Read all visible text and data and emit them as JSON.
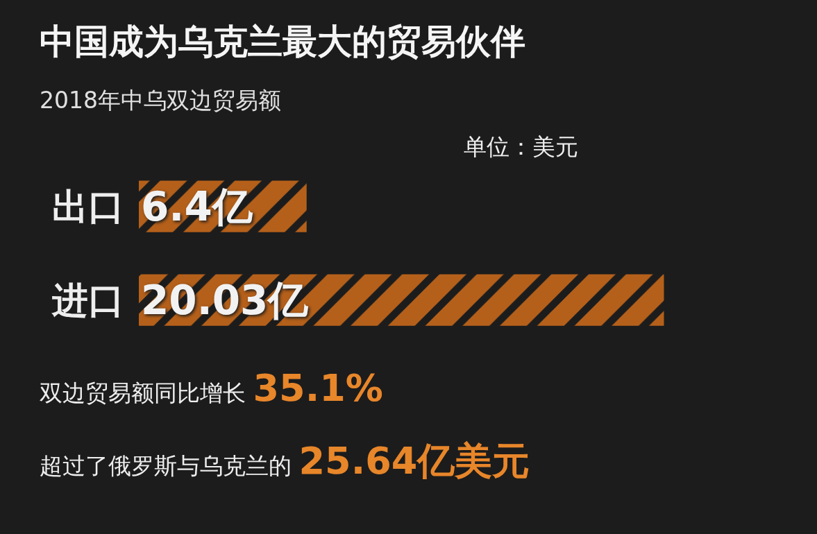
{
  "chart_data": {
    "type": "bar",
    "orientation": "horizontal",
    "title": "中国成为乌克兰最大的贸易伙伴",
    "subtitle": "2018年中乌双边贸易额",
    "categories": [
      "出口",
      "进口"
    ],
    "values": [
      6.4,
      20.03
    ],
    "value_labels": [
      "6.4亿",
      "20.03亿"
    ],
    "color": "#b5601a",
    "tick_labels": "y",
    "annotations": [
      "单位：美元",
      "双边贸易额同比增长 35.1%",
      "超过了俄罗斯与乌克兰的 25.64亿美元"
    ]
  }
}
